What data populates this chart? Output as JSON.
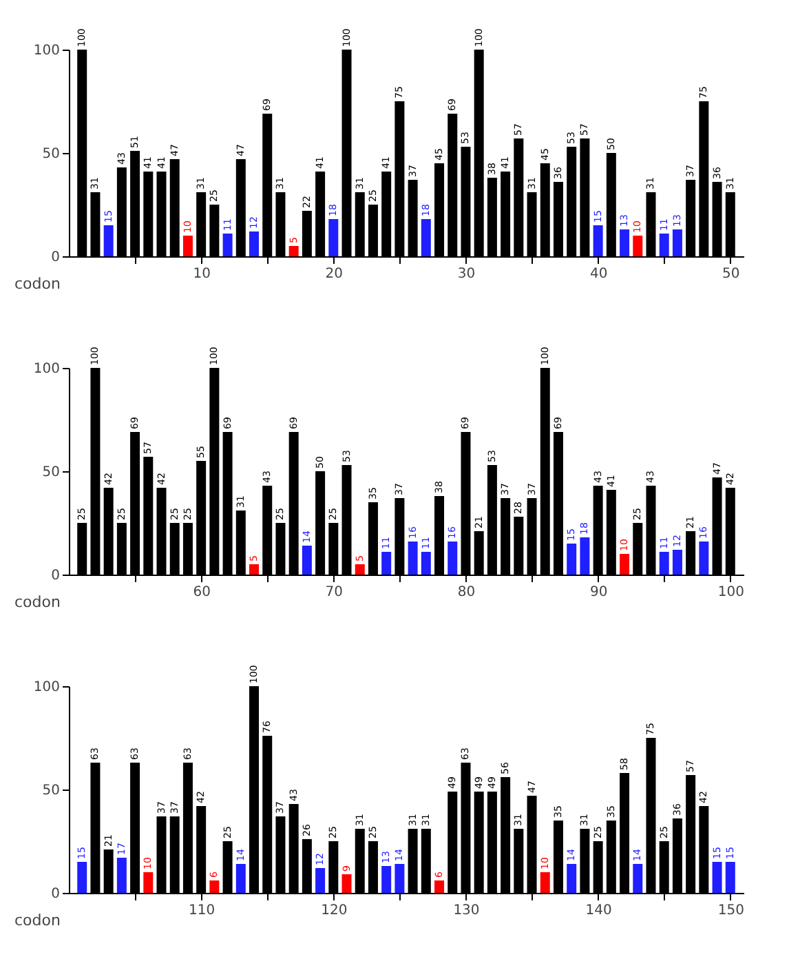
{
  "chart_data": [
    {
      "type": "bar",
      "xlabel": "codon",
      "x": [
        1,
        2,
        3,
        4,
        5,
        6,
        7,
        8,
        9,
        10,
        11,
        12,
        13,
        14,
        15,
        16,
        17,
        18,
        19,
        20,
        21,
        22,
        23,
        24,
        25,
        26,
        27,
        28,
        29,
        30,
        31,
        32,
        33,
        34,
        35,
        36,
        37,
        38,
        39,
        40,
        41,
        42,
        43,
        44,
        45,
        46,
        47,
        48,
        49,
        50
      ],
      "values": [
        100,
        31,
        15,
        43,
        51,
        41,
        41,
        47,
        10,
        31,
        25,
        11,
        47,
        12,
        69,
        31,
        5,
        22,
        41,
        18,
        100,
        31,
        25,
        41,
        75,
        37,
        18,
        45,
        69,
        53,
        100,
        38,
        41,
        57,
        31,
        45,
        36,
        53,
        57,
        15,
        50,
        13,
        10,
        31,
        11,
        13,
        37,
        75,
        36,
        31
      ],
      "colors": [
        "#000000",
        "#000000",
        "#1f1fff",
        "#000000",
        "#000000",
        "#000000",
        "#000000",
        "#000000",
        "#ff0000",
        "#000000",
        "#000000",
        "#1f1fff",
        "#000000",
        "#1f1fff",
        "#000000",
        "#000000",
        "#ff0000",
        "#000000",
        "#000000",
        "#1f1fff",
        "#000000",
        "#000000",
        "#000000",
        "#000000",
        "#000000",
        "#000000",
        "#1f1fff",
        "#000000",
        "#000000",
        "#000000",
        "#000000",
        "#000000",
        "#000000",
        "#000000",
        "#000000",
        "#000000",
        "#000000",
        "#000000",
        "#000000",
        "#1f1fff",
        "#000000",
        "#1f1fff",
        "#ff0000",
        "#000000",
        "#1f1fff",
        "#1f1fff",
        "#000000",
        "#000000",
        "#000000",
        "#000000"
      ],
      "xlim": [
        0,
        51
      ],
      "xticks": [
        {
          "value": 5,
          "label": null
        },
        10,
        {
          "value": 15,
          "label": null
        },
        20,
        {
          "value": 25,
          "label": null
        },
        30,
        {
          "value": 35,
          "label": null
        },
        40,
        {
          "value": 45,
          "label": null
        },
        50
      ],
      "ylim": [
        0,
        100
      ],
      "yticks": [
        0,
        50,
        100
      ],
      "data_labels": true,
      "grid": false
    },
    {
      "type": "bar",
      "xlabel": "codon",
      "x": [
        51,
        52,
        53,
        54,
        55,
        56,
        57,
        58,
        59,
        60,
        61,
        62,
        63,
        64,
        65,
        66,
        67,
        68,
        69,
        70,
        71,
        72,
        73,
        74,
        75,
        76,
        77,
        78,
        79,
        80,
        81,
        82,
        83,
        84,
        85,
        86,
        87,
        88,
        89,
        90,
        91,
        92,
        93,
        94,
        95,
        96,
        97,
        98,
        99,
        100
      ],
      "values": [
        25,
        100,
        42,
        25,
        69,
        57,
        42,
        25,
        25,
        55,
        100,
        69,
        31,
        5,
        43,
        25,
        69,
        14,
        50,
        25,
        53,
        5,
        35,
        11,
        37,
        16,
        11,
        38,
        16,
        69,
        21,
        53,
        37,
        28,
        37,
        100,
        69,
        15,
        18,
        43,
        41,
        10,
        25,
        43,
        11,
        12,
        21,
        16,
        47,
        42
      ],
      "colors": [
        "#000000",
        "#000000",
        "#000000",
        "#000000",
        "#000000",
        "#000000",
        "#000000",
        "#000000",
        "#000000",
        "#000000",
        "#000000",
        "#000000",
        "#000000",
        "#ff0000",
        "#000000",
        "#000000",
        "#000000",
        "#1f1fff",
        "#000000",
        "#000000",
        "#000000",
        "#ff0000",
        "#000000",
        "#1f1fff",
        "#000000",
        "#1f1fff",
        "#1f1fff",
        "#000000",
        "#1f1fff",
        "#000000",
        "#000000",
        "#000000",
        "#000000",
        "#000000",
        "#000000",
        "#000000",
        "#000000",
        "#1f1fff",
        "#1f1fff",
        "#000000",
        "#000000",
        "#ff0000",
        "#000000",
        "#000000",
        "#1f1fff",
        "#1f1fff",
        "#000000",
        "#1f1fff",
        "#000000",
        "#000000"
      ],
      "xlim": [
        50,
        101
      ],
      "xticks": [
        {
          "value": 55,
          "label": null
        },
        60,
        {
          "value": 65,
          "label": null
        },
        70,
        {
          "value": 75,
          "label": null
        },
        80,
        {
          "value": 85,
          "label": null
        },
        90,
        {
          "value": 95,
          "label": null
        },
        100
      ],
      "ylim": [
        0,
        100
      ],
      "yticks": [
        0,
        50,
        100
      ],
      "data_labels": true,
      "grid": false
    },
    {
      "type": "bar",
      "xlabel": "codon",
      "x": [
        101,
        102,
        103,
        104,
        105,
        106,
        107,
        108,
        109,
        110,
        111,
        112,
        113,
        114,
        115,
        116,
        117,
        118,
        119,
        120,
        121,
        122,
        123,
        124,
        125,
        126,
        127,
        128,
        129,
        130,
        131,
        132,
        133,
        134,
        135,
        136,
        137,
        138,
        139,
        140,
        141,
        142,
        143,
        144,
        145,
        146,
        147,
        148,
        149,
        150
      ],
      "values": [
        15,
        63,
        21,
        17,
        63,
        10,
        37,
        37,
        63,
        42,
        6,
        25,
        14,
        100,
        76,
        37,
        43,
        26,
        12,
        25,
        9,
        31,
        25,
        13,
        14,
        31,
        31,
        6,
        49,
        63,
        49,
        49,
        56,
        31,
        47,
        10,
        35,
        14,
        31,
        25,
        35,
        58,
        14,
        75,
        25,
        36,
        57,
        42,
        15,
        15
      ],
      "colors": [
        "#1f1fff",
        "#000000",
        "#000000",
        "#1f1fff",
        "#000000",
        "#ff0000",
        "#000000",
        "#000000",
        "#000000",
        "#000000",
        "#ff0000",
        "#000000",
        "#1f1fff",
        "#000000",
        "#000000",
        "#000000",
        "#000000",
        "#000000",
        "#1f1fff",
        "#000000",
        "#ff0000",
        "#000000",
        "#000000",
        "#1f1fff",
        "#1f1fff",
        "#000000",
        "#000000",
        "#ff0000",
        "#000000",
        "#000000",
        "#000000",
        "#000000",
        "#000000",
        "#000000",
        "#000000",
        "#ff0000",
        "#000000",
        "#1f1fff",
        "#000000",
        "#000000",
        "#000000",
        "#000000",
        "#1f1fff",
        "#000000",
        "#000000",
        "#000000",
        "#000000",
        "#000000",
        "#1f1fff",
        "#1f1fff"
      ],
      "xlim": [
        100,
        151
      ],
      "xticks": [
        {
          "value": 105,
          "label": null
        },
        110,
        {
          "value": 115,
          "label": null
        },
        120,
        {
          "value": 125,
          "label": null
        },
        130,
        {
          "value": 135,
          "label": null
        },
        140,
        {
          "value": 145,
          "label": null
        },
        150
      ],
      "ylim": [
        0,
        100
      ],
      "yticks": [
        0,
        50,
        100
      ],
      "data_labels": true,
      "grid": false
    }
  ]
}
